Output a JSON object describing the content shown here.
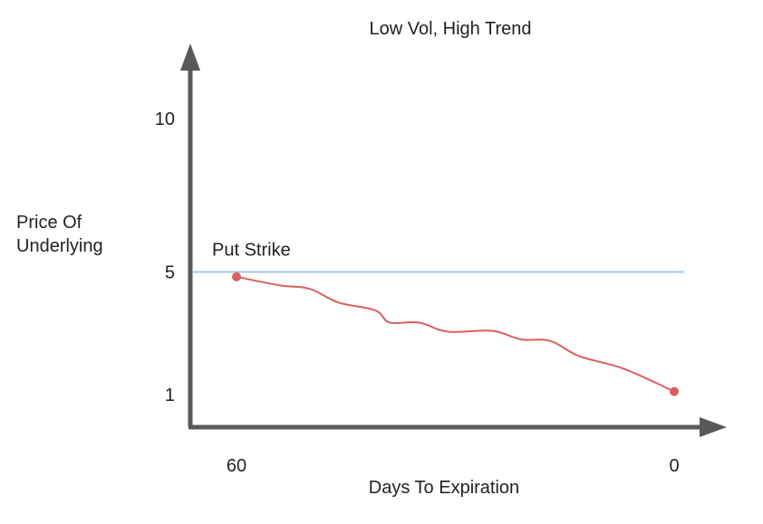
{
  "chart_data": {
    "type": "line",
    "title": "Low Vol, High Trend",
    "xlabel": "Days To Expiration",
    "ylabel": [
      "Price Of",
      "Underlying"
    ],
    "x_ticks": [
      {
        "value": 60,
        "label": "60"
      },
      {
        "value": 0,
        "label": "0"
      }
    ],
    "y_ticks": [
      {
        "value": 10,
        "label": "10"
      },
      {
        "value": 5,
        "label": "5"
      },
      {
        "value": 1,
        "label": "1"
      }
    ],
    "xlim": [
      60,
      0
    ],
    "ylim": [
      1,
      10
    ],
    "grid": false,
    "reference_line": {
      "label": "Put Strike",
      "value": 5,
      "color": "#a9c4df"
    },
    "series": [
      {
        "color": "#d9605d",
        "x": [
          60,
          54,
          50,
          46,
          41,
          39,
          35,
          31,
          25,
          21,
          17,
          13,
          7,
          0
        ],
        "y": [
          4.84,
          4.56,
          4.45,
          4.0,
          3.75,
          3.35,
          3.35,
          3.05,
          3.08,
          2.8,
          2.75,
          2.25,
          1.85,
          1.1
        ]
      }
    ],
    "axis_color": "#595959"
  }
}
